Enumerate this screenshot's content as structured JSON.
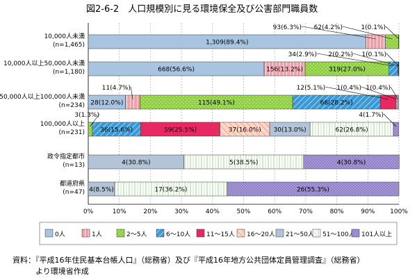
{
  "title": "図2-6-2　人口規模別に見る環境保全及び公害部門職員数",
  "source_lines": [
    "資料：『平成16年住民基本台帳人口』（総務省）及び『平成16年地方公共団体定員管理調査』（総務省）",
    "　　　より環境省作成"
  ],
  "chart_data": {
    "type": "bar",
    "orientation": "horizontal",
    "stacked": true,
    "percent": true,
    "xlim": [
      0,
      100
    ],
    "x_ticks": [
      "0%",
      "10%",
      "20%",
      "30%",
      "40%",
      "50%",
      "60%",
      "70%",
      "80%",
      "90%",
      "100%"
    ],
    "categories": [
      {
        "label": "10,000人未満",
        "n": "(n=1,465)"
      },
      {
        "label": "10,000人以上50,000人未満",
        "n": "(n=1,180)"
      },
      {
        "label": "50,000人以上100,000人未満",
        "n": "(n=234)"
      },
      {
        "label": "100,000人以上",
        "n": "(n=231)"
      },
      {
        "label": "政令指定都市",
        "n": "(n=13)"
      },
      {
        "label": "都道府県",
        "n": "(n=47)"
      }
    ],
    "series": [
      {
        "name": "0人",
        "color": "#a8c4e0"
      },
      {
        "name": "1人",
        "color": "#f0a0a8"
      },
      {
        "name": "2～5人",
        "color": "#8ed040"
      },
      {
        "name": "6～10人",
        "color": "#3a9ad8"
      },
      {
        "name": "11～15人",
        "color": "#e82860"
      },
      {
        "name": "16～20人",
        "color": "#ffd8c8"
      },
      {
        "name": "21～50人",
        "color": "#b4c4d8"
      },
      {
        "name": "51～100人",
        "color": "#ffffff"
      },
      {
        "name": "101人以上",
        "color": "#9080c8"
      }
    ],
    "values": [
      [
        1309,
        93,
        62,
        1,
        0,
        0,
        0,
        0,
        0
      ],
      [
        668,
        156,
        319,
        34,
        2,
        1,
        0,
        0,
        0
      ],
      [
        28,
        11,
        115,
        66,
        12,
        1,
        1,
        0,
        0
      ],
      [
        0,
        0,
        3,
        36,
        59,
        37,
        30,
        62,
        4
      ],
      [
        0,
        0,
        0,
        0,
        0,
        0,
        4,
        5,
        4
      ],
      [
        0,
        0,
        0,
        0,
        0,
        0,
        4,
        17,
        26
      ]
    ],
    "percents": [
      [
        89.4,
        6.3,
        4.2,
        0.1,
        0,
        0,
        0,
        0,
        0
      ],
      [
        56.6,
        13.2,
        27.0,
        2.9,
        0.2,
        0.1,
        0,
        0,
        0
      ],
      [
        12.0,
        4.7,
        49.1,
        28.2,
        5.1,
        0.4,
        0.4,
        0,
        0
      ],
      [
        0,
        0,
        1.3,
        15.6,
        25.5,
        16.0,
        13.0,
        26.8,
        1.7
      ],
      [
        0,
        0,
        0,
        0,
        0,
        0,
        30.8,
        38.5,
        30.8
      ],
      [
        0,
        0,
        0,
        0,
        0,
        0,
        8.5,
        36.2,
        55.3
      ]
    ],
    "inside_labels": [
      [
        "1,309(89.4%)",
        "",
        "",
        "",
        "",
        "",
        "",
        "",
        ""
      ],
      [
        "668(56.6%)",
        "156(13.2%)",
        "319(27.0%)",
        "",
        "",
        "",
        "",
        "",
        ""
      ],
      [
        "28(12.0%)",
        "",
        "115(49.1%)",
        "66(28.2%)",
        "",
        "",
        "",
        "",
        ""
      ],
      [
        "",
        "",
        "",
        "36(15.6%)",
        "59(25.5%)",
        "37(16.0%)",
        "30(13.0%)",
        "62(26.8%)",
        ""
      ],
      [
        "",
        "",
        "",
        "",
        "",
        "",
        "4(30.8%)",
        "5(38.5%)",
        "4(30.8%)"
      ],
      [
        "",
        "",
        "",
        "",
        "",
        "",
        "4(8.5%)",
        "17(36.2%)",
        "26(55.3%)"
      ]
    ],
    "outside_labels": [
      {
        "row": 0,
        "seg": 1,
        "text": "93(6.3%)"
      },
      {
        "row": 0,
        "seg": 2,
        "text": "62(4.2%)"
      },
      {
        "row": 0,
        "seg": 3,
        "text": "1(0.1%)"
      },
      {
        "row": 1,
        "seg": 3,
        "text": "34(2.9%)"
      },
      {
        "row": 1,
        "seg": 4,
        "text": "2(0.2%)"
      },
      {
        "row": 1,
        "seg": 5,
        "text": "1(0.1%)"
      },
      {
        "row": 2,
        "seg": 1,
        "text": "11(4.7%)"
      },
      {
        "row": 2,
        "seg": 4,
        "text": "12(5.1%)"
      },
      {
        "row": 2,
        "seg": 5,
        "text": "1(0.4%)"
      },
      {
        "row": 2,
        "seg": 6,
        "text": "1(0.4%)"
      },
      {
        "row": 3,
        "seg": 2,
        "text": "3(1.3%)"
      },
      {
        "row": 3,
        "seg": 8,
        "text": "4(1.7%)"
      }
    ],
    "legend_position": "bottom",
    "grid": true
  }
}
